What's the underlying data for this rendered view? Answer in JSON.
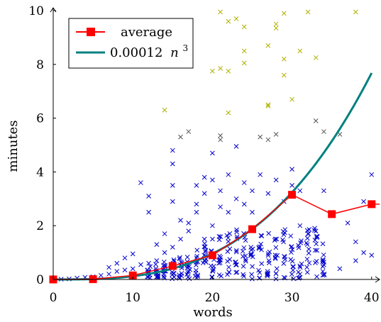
{
  "chart_data": {
    "type": "scatter",
    "xlabel": "words",
    "ylabel": "minutes",
    "xlim": [
      0,
      41
    ],
    "ylim": [
      0,
      10
    ],
    "x_ticks": [
      0,
      10,
      20,
      30,
      40
    ],
    "y_ticks": [
      0,
      2,
      4,
      6,
      8,
      10
    ],
    "legend_position": "top-left",
    "colors": {
      "average": "#ff0000",
      "fit": "#008080",
      "scatter_low": "#0000cc",
      "scatter_mid": "#555555",
      "scatter_high": "#b0b000"
    },
    "series": [
      {
        "name": "average",
        "type": "line",
        "marker": "square",
        "x": [
          0,
          5,
          10,
          15,
          20,
          25,
          30,
          35,
          40
        ],
        "y": [
          0.0,
          0.01,
          0.15,
          0.5,
          0.9,
          1.87,
          3.15,
          2.43,
          2.8
        ]
      },
      {
        "name": "0.00012 n^3",
        "label_main": "0.00012",
        "label_var": "n",
        "label_exp": "3",
        "type": "line",
        "formula_coefficient": 0.00012,
        "formula_exponent": 3,
        "x_range": [
          0,
          40
        ]
      },
      {
        "type": "scatter",
        "marker": "x",
        "points": [
          [
            1,
            0.01
          ],
          [
            2,
            0.02
          ],
          [
            3,
            0.05
          ],
          [
            4,
            0.08
          ],
          [
            5,
            0.1
          ],
          [
            6,
            0.15
          ],
          [
            7,
            0.2
          ],
          [
            7,
            0.45
          ],
          [
            8,
            0.3
          ],
          [
            8,
            0.6
          ],
          [
            9,
            0.35
          ],
          [
            9,
            0.8
          ],
          [
            10,
            0.4
          ],
          [
            10,
            0.95
          ],
          [
            11,
            0.55
          ],
          [
            11,
            3.6
          ],
          [
            12,
            0.6
          ],
          [
            12,
            2.5
          ],
          [
            12,
            3.1
          ],
          [
            13,
            0.7
          ],
          [
            13,
            1.3
          ],
          [
            14,
            1.7
          ],
          [
            14,
            1.0
          ],
          [
            15,
            1.2
          ],
          [
            15,
            2.9
          ],
          [
            15,
            3.5
          ],
          [
            15,
            4.3
          ],
          [
            15,
            4.8
          ],
          [
            16,
            1.5
          ],
          [
            16,
            2.2
          ],
          [
            16,
            5.3
          ],
          [
            17,
            1.8
          ],
          [
            17,
            2.1
          ],
          [
            17,
            5.5
          ],
          [
            18,
            2.5
          ],
          [
            18,
            2.8
          ],
          [
            18,
            3.5
          ],
          [
            19,
            1.5
          ],
          [
            19,
            3.8
          ],
          [
            19,
            3.2
          ],
          [
            20,
            2.0
          ],
          [
            20,
            3.7
          ],
          [
            20,
            4.7
          ],
          [
            21,
            2.7
          ],
          [
            21,
            3.3
          ],
          [
            21,
            5.2
          ],
          [
            21,
            5.35
          ],
          [
            22,
            2.5
          ],
          [
            22,
            3.9
          ],
          [
            23,
            3.0
          ],
          [
            23,
            4.95
          ],
          [
            24,
            3.6
          ],
          [
            24,
            2.8
          ],
          [
            25,
            3.3
          ],
          [
            25,
            2.5
          ],
          [
            26,
            3.9
          ],
          [
            26,
            5.3
          ],
          [
            27,
            3.2
          ],
          [
            27,
            5.2
          ],
          [
            28,
            3.7
          ],
          [
            28,
            5.4
          ],
          [
            29,
            2.9
          ],
          [
            30,
            3.5
          ],
          [
            30,
            4.1
          ],
          [
            31,
            2.0
          ],
          [
            31,
            3.3
          ],
          [
            32,
            1.7
          ],
          [
            33,
            1.8
          ],
          [
            33,
            5.9
          ],
          [
            34,
            3.3
          ],
          [
            34,
            5.5
          ],
          [
            36,
            0.4
          ],
          [
            36,
            5.4
          ],
          [
            37,
            2.1
          ],
          [
            38,
            0.7
          ],
          [
            38,
            1.4
          ],
          [
            39,
            2.9
          ],
          [
            39,
            1.0
          ],
          [
            40,
            0.9
          ],
          [
            40,
            3.9
          ]
        ],
        "high_points": [
          [
            14,
            6.3
          ],
          [
            20,
            7.75
          ],
          [
            21,
            9.95
          ],
          [
            21,
            7.85
          ],
          [
            22,
            9.6
          ],
          [
            22,
            7.75
          ],
          [
            22,
            6.2
          ],
          [
            23,
            9.7
          ],
          [
            24,
            9.4
          ],
          [
            24,
            8.5
          ],
          [
            24,
            8.05
          ],
          [
            27,
            8.7
          ],
          [
            27,
            6.5
          ],
          [
            27,
            6.45
          ],
          [
            28,
            9.5
          ],
          [
            28,
            9.35
          ],
          [
            29,
            9.9
          ],
          [
            29,
            8.2
          ],
          [
            29,
            7.6
          ],
          [
            30,
            6.7
          ],
          [
            31,
            8.5
          ],
          [
            32,
            9.95
          ],
          [
            33,
            8.25
          ],
          [
            38,
            9.95
          ]
        ],
        "dense_x": [
          12,
          13,
          14,
          15,
          16,
          17,
          18,
          19,
          20,
          21,
          22,
          23,
          24,
          25,
          26,
          27,
          28,
          29,
          30,
          31,
          32,
          33,
          34
        ]
      }
    ]
  }
}
